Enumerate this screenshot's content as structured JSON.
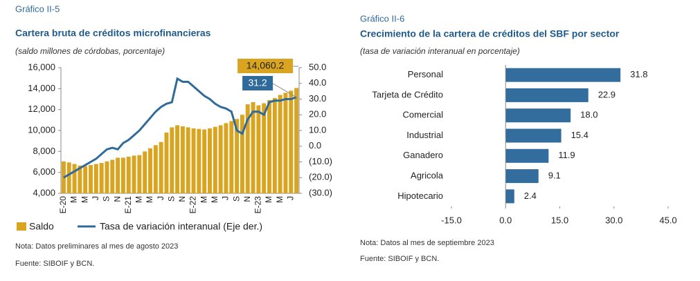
{
  "chart_data": [
    {
      "type": "combo",
      "figure_label": "Gráfico II-5",
      "title": "Cartera bruta de créditos microfinancieras",
      "subtitle": "(saldo millones de córdobas, porcentaje)",
      "categories": [
        "E-20",
        null,
        "M",
        null,
        "M",
        null,
        "J",
        null,
        "S",
        null,
        "N",
        null,
        "E-21",
        null,
        "M",
        null,
        "M",
        null,
        "J",
        null,
        "S",
        null,
        "N",
        null,
        "E-22",
        null,
        "M",
        null,
        "M",
        null,
        "J",
        null,
        "S",
        null,
        "N",
        null,
        "E-23",
        null,
        "M",
        null,
        "M",
        null,
        "J",
        null
      ],
      "series": [
        {
          "name": "Saldo",
          "type": "bar",
          "color": "#d9a520",
          "values": [
            7050,
            6950,
            6800,
            6650,
            6600,
            6700,
            6800,
            6900,
            7050,
            7200,
            7400,
            7400,
            7500,
            7600,
            7650,
            8000,
            8300,
            8600,
            8900,
            9800,
            10300,
            10500,
            10400,
            10300,
            10200,
            10150,
            10100,
            10200,
            10350,
            10500,
            10700,
            10900,
            11100,
            11500,
            12500,
            12700,
            12400,
            12600,
            12900,
            13100,
            13400,
            13600,
            13800,
            14060.2
          ],
          "value_labels": [
            null,
            null,
            null,
            null,
            null,
            null,
            null,
            null,
            null,
            null,
            null,
            null,
            null,
            null,
            null,
            null,
            null,
            null,
            null,
            null,
            null,
            null,
            null,
            null,
            null,
            null,
            null,
            null,
            null,
            null,
            null,
            null,
            null,
            null,
            null,
            null,
            null,
            null,
            null,
            null,
            null,
            null,
            null,
            "14,060.2"
          ]
        },
        {
          "name": "Tasa de variación interanual (Eje der.)",
          "type": "line",
          "axis": "y2",
          "color": "#2f6a9b",
          "values": [
            -20,
            -18,
            -16,
            -14,
            -12,
            -10,
            -8,
            -5,
            -2,
            -1,
            -2,
            2,
            4,
            7,
            10,
            14,
            18,
            22,
            25,
            27,
            28,
            43,
            41,
            41,
            38,
            35,
            32,
            30,
            27,
            25,
            24,
            22,
            10,
            8,
            17,
            22,
            22,
            20,
            28,
            29,
            29,
            30,
            30,
            31.2
          ]
        }
      ],
      "ylim": [
        4000,
        16000
      ],
      "yticks": [
        {
          "value": 4000,
          "label": "4,000"
        },
        {
          "value": 6000,
          "label": "6,000"
        },
        {
          "value": 8000,
          "label": "8,000"
        },
        {
          "value": 10000,
          "label": "10,000"
        },
        {
          "value": 12000,
          "label": "12,000"
        },
        {
          "value": 14000,
          "label": "14,000"
        },
        {
          "value": 16000,
          "label": "16,000"
        }
      ],
      "y2lim": [
        -30,
        50
      ],
      "y2ticks": [
        {
          "value": -30,
          "label": "(30.0)"
        },
        {
          "value": -20,
          "label": "(20.0)"
        },
        {
          "value": -10,
          "label": "(10.0)"
        },
        {
          "value": 0,
          "label": "0.0"
        },
        {
          "value": 10,
          "label": "10.0"
        },
        {
          "value": 20,
          "label": "20.0"
        },
        {
          "value": 30,
          "label": "30.0"
        },
        {
          "value": 40,
          "label": "40.0"
        },
        {
          "value": 50,
          "label": "50.0"
        }
      ],
      "note": "Nota: Datos preliminares al mes de agosto 2023",
      "source": "Fuente: SIBOIF y BCN."
    },
    {
      "type": "barh",
      "figure_label": "Gráfico II-6",
      "title": "Crecimiento de la cartera de créditos del SBF por sector",
      "subtitle": "(tasa de variación interanual en porcentaje)",
      "categories": [
        "Personal",
        "Tarjeta de Crédito",
        "Comercial",
        "Industrial",
        "Ganadero",
        "Agricola",
        "Hipotecario"
      ],
      "values": [
        31.8,
        22.9,
        18.0,
        15.4,
        11.9,
        9.1,
        2.4
      ],
      "value_labels": [
        "31.8",
        "22.9",
        "18.0",
        "15.4",
        "11.9",
        "9.1",
        "2.4"
      ],
      "color": "#336d9e",
      "xlim": [
        -15,
        45
      ],
      "xticks": [
        {
          "value": -15,
          "label": "-15.0"
        },
        {
          "value": 0,
          "label": "0.0"
        },
        {
          "value": 15,
          "label": "15.0"
        },
        {
          "value": 30,
          "label": "30.0"
        },
        {
          "value": 45,
          "label": "45.0"
        }
      ],
      "note": "Nota: Datos al mes de septiembre 2023",
      "source": "Fuente: SIBOIF y BCN."
    }
  ]
}
